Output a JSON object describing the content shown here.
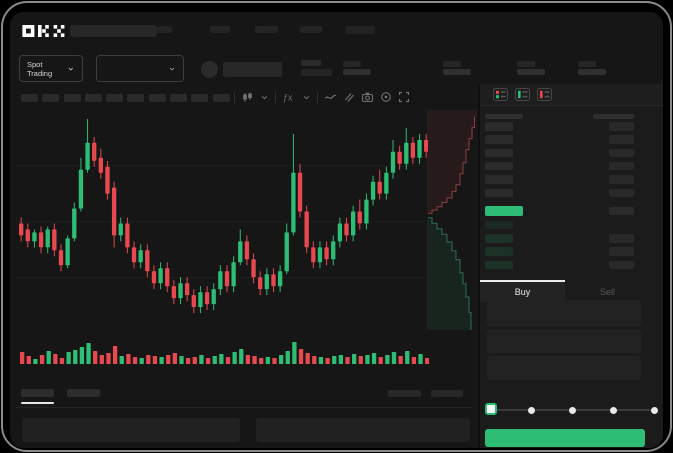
{
  "app": {
    "vendor_logo": "OKX"
  },
  "colors": {
    "background": "#000000",
    "panel": "#161616",
    "book_panel": "#1b1b1b",
    "green": "#2ebd74",
    "red": "#e8494f",
    "skeleton_dark": "#242424",
    "skeleton_mid": "#2b2b2b",
    "tab_active_underline": "#ededed"
  },
  "ticker": {
    "market_selector_label": "Spot Trading"
  },
  "toolbar": {
    "timeframe_slot_count": 10,
    "icons": [
      "chart-style-icon",
      "chevron-down-icon",
      "indicators-icon",
      "chevron-down-icon",
      "line-tool-icon",
      "compare-icon",
      "screenshot-icon",
      "target-icon",
      "fullscreen-icon"
    ]
  },
  "chart_data": {
    "type": "candlestick",
    "title": "",
    "note": "Skeleton trading mockup: chart has no axis tick labels or numeric values rendered; candle geometry captured on a relative 0-100 price scale as [open,close,low,high]",
    "ylim": [
      24,
      96
    ],
    "grid": true,
    "legend": false,
    "candles_ochl": [
      [
        58,
        54,
        52,
        60
      ],
      [
        56,
        52,
        50,
        58
      ],
      [
        52,
        55,
        50,
        56
      ],
      [
        55,
        50,
        48,
        57
      ],
      [
        50,
        56,
        48,
        57
      ],
      [
        56,
        49,
        47,
        58
      ],
      [
        49,
        44,
        42,
        51
      ],
      [
        44,
        53,
        43,
        54
      ],
      [
        53,
        63,
        52,
        65
      ],
      [
        63,
        76,
        62,
        80
      ],
      [
        76,
        85,
        75,
        93
      ],
      [
        85,
        79,
        77,
        87
      ],
      [
        80,
        75,
        73,
        83
      ],
      [
        77,
        68,
        66,
        79
      ],
      [
        70,
        54,
        50,
        72
      ],
      [
        54,
        58,
        52,
        60
      ],
      [
        58,
        50,
        48,
        60
      ],
      [
        50,
        45,
        43,
        52
      ],
      [
        45,
        49,
        43,
        51
      ],
      [
        49,
        42,
        40,
        51
      ],
      [
        42,
        38,
        36,
        44
      ],
      [
        38,
        43,
        36,
        45
      ],
      [
        43,
        37,
        35,
        45
      ],
      [
        37,
        33,
        31,
        39
      ],
      [
        33,
        38,
        31,
        40
      ],
      [
        38,
        34,
        32,
        40
      ],
      [
        34,
        30,
        28,
        36
      ],
      [
        30,
        35,
        28,
        37
      ],
      [
        35,
        31,
        29,
        37
      ],
      [
        31,
        36,
        29,
        38
      ],
      [
        36,
        42,
        34,
        44
      ],
      [
        42,
        37,
        35,
        44
      ],
      [
        37,
        45,
        35,
        47
      ],
      [
        45,
        52,
        44,
        56
      ],
      [
        52,
        46,
        44,
        54
      ],
      [
        46,
        40,
        38,
        48
      ],
      [
        40,
        36,
        34,
        42
      ],
      [
        36,
        41,
        34,
        43
      ],
      [
        41,
        37,
        35,
        43
      ],
      [
        37,
        42,
        35,
        44
      ],
      [
        42,
        55,
        41,
        58
      ],
      [
        55,
        75,
        54,
        88
      ],
      [
        75,
        62,
        60,
        78
      ],
      [
        62,
        50,
        48,
        64
      ],
      [
        50,
        45,
        43,
        52
      ],
      [
        45,
        50,
        43,
        52
      ],
      [
        50,
        46,
        44,
        52
      ],
      [
        46,
        52,
        44,
        54
      ],
      [
        52,
        58,
        50,
        60
      ],
      [
        58,
        54,
        52,
        60
      ],
      [
        54,
        62,
        52,
        64
      ],
      [
        62,
        58,
        56,
        66
      ],
      [
        58,
        66,
        56,
        68
      ],
      [
        66,
        72,
        64,
        74
      ],
      [
        72,
        68,
        66,
        76
      ],
      [
        68,
        75,
        66,
        77
      ],
      [
        75,
        82,
        73,
        86
      ],
      [
        82,
        78,
        76,
        84
      ],
      [
        78,
        85,
        76,
        90
      ],
      [
        85,
        80,
        78,
        87
      ],
      [
        80,
        86,
        78,
        88
      ],
      [
        86,
        82,
        80,
        88
      ]
    ],
    "volume": {
      "type": "bar",
      "values": [
        12,
        8,
        5,
        9,
        13,
        10,
        6,
        12,
        14,
        17,
        21,
        13,
        9,
        11,
        18,
        8,
        10,
        7,
        6,
        9,
        8,
        7,
        9,
        11,
        8,
        6,
        7,
        9,
        6,
        8,
        10,
        7,
        12,
        15,
        9,
        8,
        6,
        7,
        6,
        9,
        13,
        22,
        15,
        11,
        8,
        7,
        6,
        8,
        9,
        7,
        10,
        8,
        9,
        11,
        7,
        9,
        12,
        8,
        13,
        7,
        10,
        6
      ]
    },
    "depth": {
      "asks": [
        [
          0.02,
          0.47
        ],
        [
          0.1,
          0.455
        ],
        [
          0.2,
          0.44
        ],
        [
          0.3,
          0.42
        ],
        [
          0.4,
          0.4
        ],
        [
          0.5,
          0.37
        ],
        [
          0.58,
          0.34
        ],
        [
          0.66,
          0.29
        ],
        [
          0.72,
          0.24
        ],
        [
          0.78,
          0.18
        ],
        [
          0.84,
          0.13
        ],
        [
          0.9,
          0.08
        ],
        [
          0.95,
          0.03
        ]
      ],
      "bids": [
        [
          0.02,
          0.49
        ],
        [
          0.1,
          0.515
        ],
        [
          0.2,
          0.54
        ],
        [
          0.3,
          0.565
        ],
        [
          0.4,
          0.6
        ],
        [
          0.5,
          0.64
        ],
        [
          0.58,
          0.68
        ],
        [
          0.66,
          0.74
        ],
        [
          0.72,
          0.79
        ],
        [
          0.78,
          0.85
        ],
        [
          0.84,
          0.92
        ],
        [
          0.88,
          1.0
        ]
      ]
    }
  },
  "orderbook": {
    "view_icons": [
      "book-split-view-icon",
      "book-bids-view-icon",
      "book-asks-view-icon"
    ],
    "rows": [
      {
        "side": "ask",
        "price_bar": true,
        "amount_bar": true
      },
      {
        "side": "ask",
        "price_bar": true,
        "amount_bar": true
      },
      {
        "side": "ask",
        "price_bar": true,
        "amount_bar": true
      },
      {
        "side": "ask",
        "price_bar": true,
        "amount_bar": true
      },
      {
        "side": "ask",
        "price_bar": true,
        "amount_bar": true
      },
      {
        "side": "ask",
        "price_bar": true,
        "amount_bar": true
      },
      {
        "side": "last_price",
        "highlight_color": "#2ebd74",
        "amount_bar": true
      },
      {
        "side": "bid",
        "price_bar": true,
        "amount_bar": false,
        "faint": true
      },
      {
        "side": "bid",
        "price_bar": true,
        "amount_bar": true
      },
      {
        "side": "bid",
        "price_bar": true,
        "amount_bar": true
      },
      {
        "side": "bid",
        "price_bar": true,
        "amount_bar": true
      }
    ]
  },
  "trade_panel": {
    "tabs": [
      {
        "label": "Buy",
        "active": true
      },
      {
        "label": "Sell",
        "active": false
      }
    ],
    "input_placeholder_count": 3,
    "slider": {
      "stop_count": 5,
      "active_stop_index": 0
    },
    "submit_button_color": "#2ebd74"
  },
  "bottom_section": {
    "tab_placeholder_count": 2,
    "header_action_placeholder_count": 2,
    "table_placeholder_count": 2
  }
}
